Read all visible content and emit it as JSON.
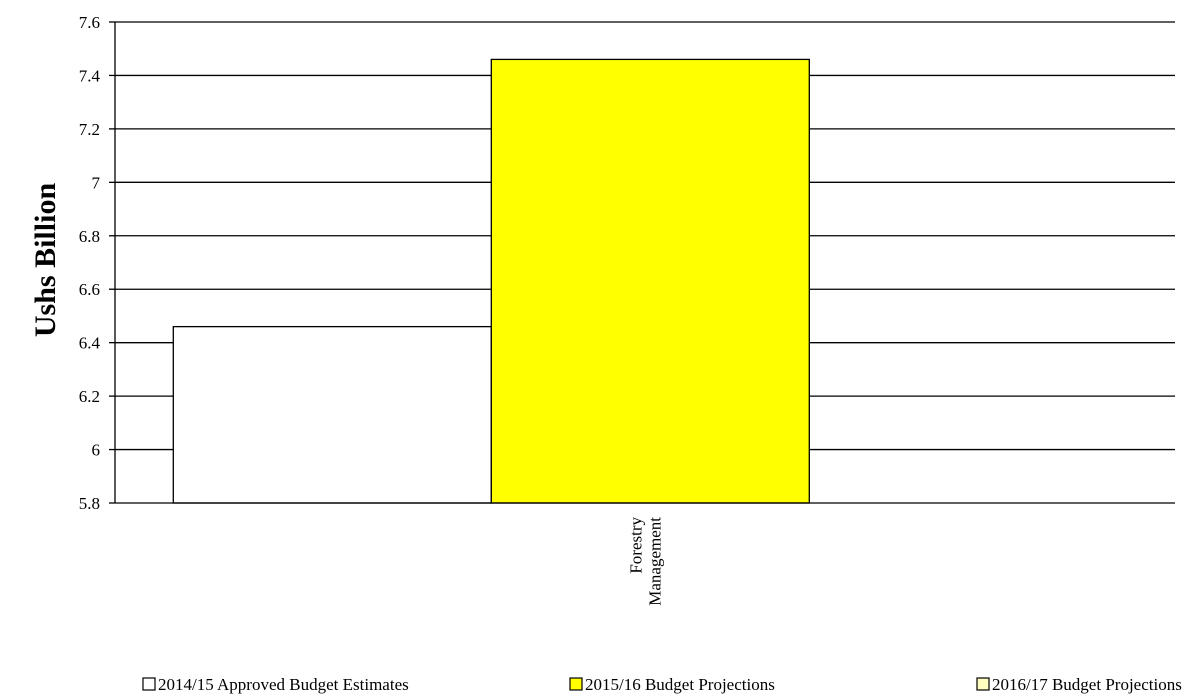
{
  "chart_data": {
    "type": "bar",
    "categories": [
      "Forestry Management"
    ],
    "category_lines": [
      [
        "Forestry",
        "Management"
      ]
    ],
    "series": [
      {
        "name": "2014/15 Approved Budget Estimates",
        "values": [
          6.46
        ],
        "color": "#ffffff"
      },
      {
        "name": "2015/16 Budget Projections",
        "values": [
          7.46
        ],
        "color": "#ffff00"
      },
      {
        "name": "2016/17 Budget Projections",
        "values": [
          5.8
        ],
        "color": "#ffffc0"
      }
    ],
    "title": "",
    "xlabel": "",
    "ylabel": "Ushs Billion",
    "ylim": [
      5.8,
      7.6
    ],
    "yticks": [
      "5.8",
      "6",
      "6.2",
      "6.4",
      "6.6",
      "6.8",
      "7",
      "7.2",
      "7.4",
      "7.6"
    ],
    "grid": true,
    "legend_position": "bottom"
  }
}
